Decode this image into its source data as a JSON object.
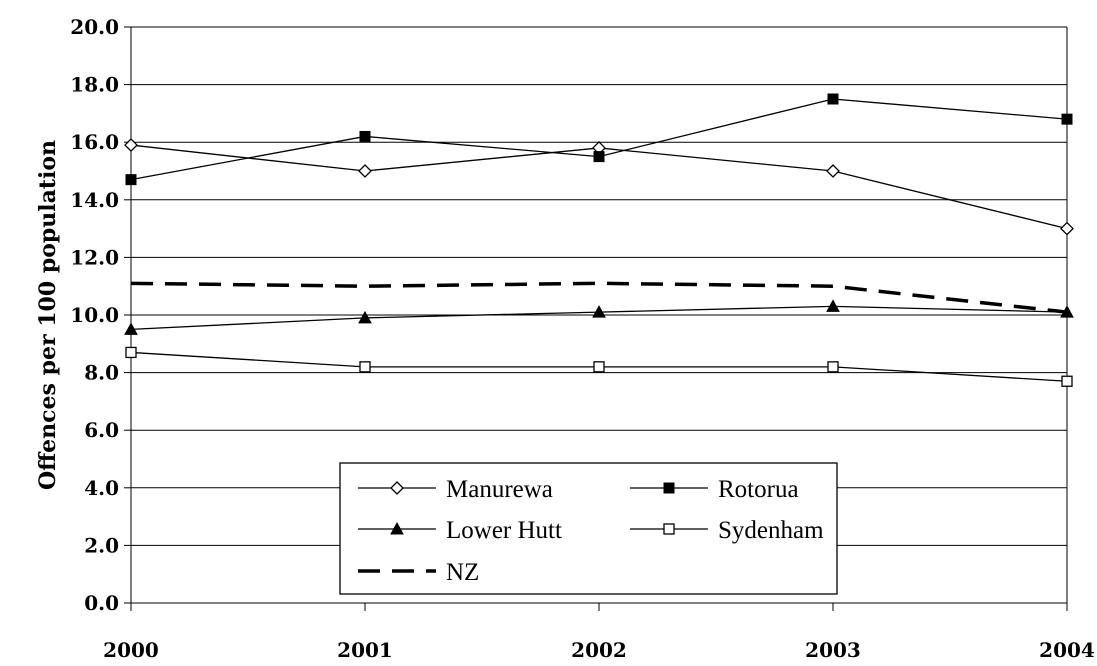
{
  "chart_data": {
    "type": "line",
    "title": "",
    "xlabel": "",
    "ylabel": "Offences per 100 population",
    "x": [
      "2000",
      "2001",
      "2002",
      "2003",
      "2004"
    ],
    "ylim": [
      0,
      20
    ],
    "yticks": [
      "0.0",
      "2.0",
      "4.0",
      "6.0",
      "8.0",
      "10.0",
      "12.0",
      "14.0",
      "16.0",
      "18.0",
      "20.0"
    ],
    "grid": "horizontal",
    "legend_position": "bottom-center",
    "series": [
      {
        "name": "Manurewa",
        "marker": "open-diamond",
        "line": "solid",
        "color": "#000000",
        "values": [
          15.9,
          15.0,
          15.8,
          15.0,
          13.0
        ]
      },
      {
        "name": "Rotorua",
        "marker": "filled-square",
        "line": "solid",
        "color": "#000000",
        "values": [
          14.7,
          16.2,
          15.5,
          17.5,
          16.8
        ]
      },
      {
        "name": "Lower Hutt",
        "marker": "filled-triangle",
        "line": "solid",
        "color": "#000000",
        "values": [
          9.5,
          9.9,
          10.1,
          10.3,
          10.1
        ]
      },
      {
        "name": "Sydenham",
        "marker": "open-square",
        "line": "solid",
        "color": "#000000",
        "values": [
          8.7,
          8.2,
          8.2,
          8.2,
          7.7
        ]
      },
      {
        "name": "NZ",
        "marker": "none",
        "line": "dashed",
        "color": "#000000",
        "values": [
          11.1,
          11.0,
          11.1,
          11.0,
          10.1
        ]
      }
    ]
  }
}
